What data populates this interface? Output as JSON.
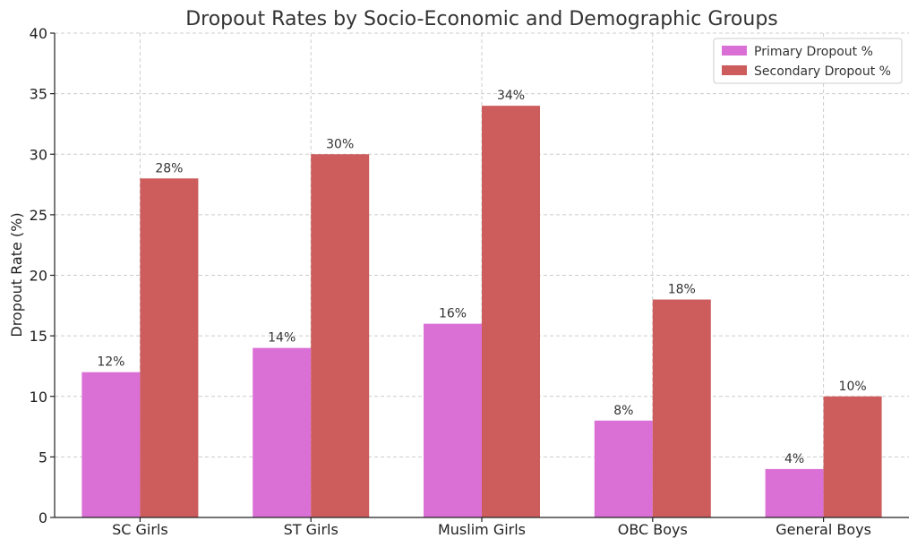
{
  "chart_data": {
    "type": "bar",
    "title": "Dropout Rates by Socio-Economic and Demographic Groups",
    "xlabel": "",
    "ylabel": "Dropout Rate (%)",
    "ylim": [
      0,
      40
    ],
    "yticks": [
      0,
      5,
      10,
      15,
      20,
      25,
      30,
      35,
      40
    ],
    "grid": true,
    "legend_position": "top-right",
    "categories": [
      "SC Girls",
      "ST Girls",
      "Muslim Girls",
      "OBC Boys",
      "General Boys"
    ],
    "series": [
      {
        "name": "Primary Dropout %",
        "color": "#da70d6",
        "values": [
          12,
          14,
          16,
          8,
          4
        ],
        "labels": [
          "12%",
          "14%",
          "16%",
          "8%",
          "4%"
        ]
      },
      {
        "name": "Secondary Dropout %",
        "color": "#cd5c5c",
        "values": [
          28,
          30,
          34,
          18,
          10
        ],
        "labels": [
          "28%",
          "30%",
          "34%",
          "18%",
          "10%"
        ]
      }
    ]
  }
}
